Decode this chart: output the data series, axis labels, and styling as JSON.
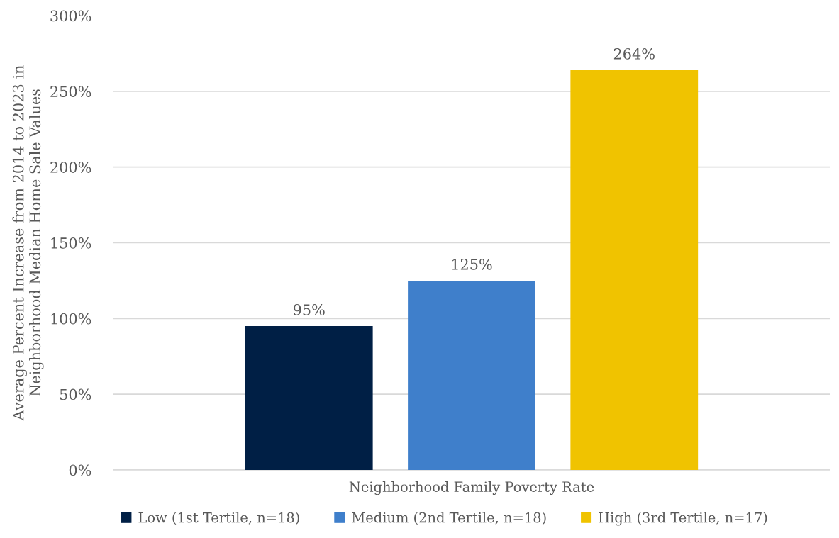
{
  "chart_data": {
    "type": "bar",
    "ylabel": "Average Percent Increase from 2014 to 2023 in\nNeighborhood Median Home Sale Values",
    "xlabel": "Neighborhood Family Poverty Rate",
    "categories": [
      null
    ],
    "series": [
      {
        "name": "Low (1st Tertile, n=18)",
        "color": "#001f45",
        "values": [
          95
        ],
        "value_labels": [
          "95%"
        ]
      },
      {
        "name": "Medium (2nd Tertile, n=18)",
        "color": "#3f7fcb",
        "values": [
          125
        ],
        "value_labels": [
          "125%"
        ]
      },
      {
        "name": "High (3rd Tertile, n=17)",
        "color": "#f0c300",
        "values": [
          264
        ],
        "value_labels": [
          "264%"
        ]
      }
    ],
    "ylim": [
      0,
      300
    ],
    "yticks": [
      {
        "value": 0,
        "label": "0%"
      },
      {
        "value": 50,
        "label": "50%"
      },
      {
        "value": 100,
        "label": "100%"
      },
      {
        "value": 150,
        "label": "150%"
      },
      {
        "value": 200,
        "label": "200%"
      },
      {
        "value": 250,
        "label": "250%"
      },
      {
        "value": 300,
        "label": "300%"
      }
    ],
    "grid": "y",
    "legend": "bottom"
  }
}
